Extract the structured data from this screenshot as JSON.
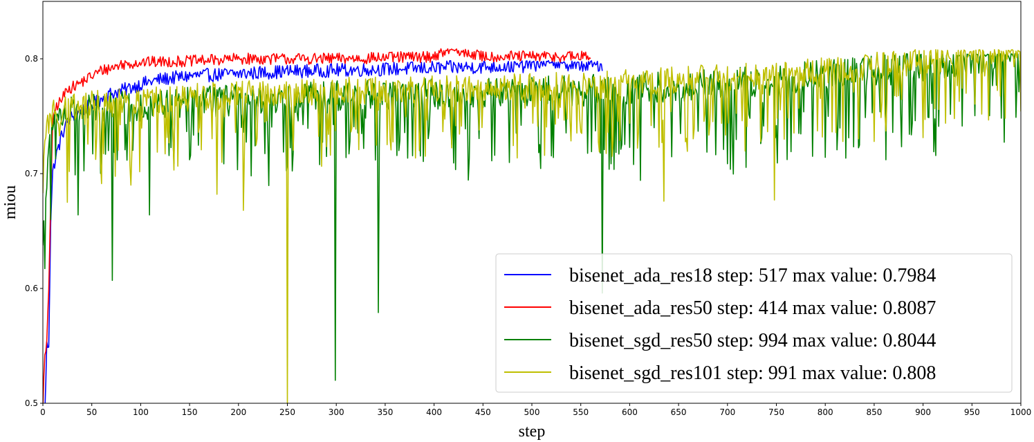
{
  "chart_data": {
    "type": "line",
    "title": "",
    "xlabel": "step",
    "ylabel": "miou",
    "xlim": [
      0,
      1000
    ],
    "ylim": [
      0.5,
      0.85
    ],
    "xticks": [
      0,
      50,
      100,
      150,
      200,
      250,
      300,
      350,
      400,
      450,
      500,
      550,
      600,
      650,
      700,
      750,
      800,
      850,
      900,
      950,
      1000
    ],
    "yticks": [
      0.5,
      0.6,
      0.7,
      0.8
    ],
    "grid": false,
    "legend_position": "lower-right",
    "series": [
      {
        "name": "bisenet_ada_res18 step: 517 max value: 0.7984",
        "color": "#0000ff",
        "x": [
          0,
          2,
          4,
          6,
          8,
          10,
          12,
          15,
          20,
          25,
          30,
          40,
          50,
          60,
          70,
          80,
          90,
          100,
          120,
          150,
          200,
          250,
          300,
          350,
          400,
          450,
          500,
          517,
          540,
          560,
          572
        ],
        "y": [
          0.45,
          0.49,
          0.55,
          0.552,
          0.66,
          0.7,
          0.71,
          0.72,
          0.735,
          0.745,
          0.75,
          0.755,
          0.76,
          0.765,
          0.77,
          0.772,
          0.775,
          0.778,
          0.782,
          0.785,
          0.787,
          0.789,
          0.79,
          0.791,
          0.792,
          0.793,
          0.794,
          0.7984,
          0.795,
          0.794,
          0.795
        ],
        "noise": 0.006,
        "max_step": 517,
        "max_value": 0.7984
      },
      {
        "name": "bisenet_ada_res50 step: 414 max value: 0.8087",
        "color": "#ff0000",
        "x": [
          0,
          2,
          4,
          6,
          8,
          10,
          12,
          15,
          20,
          25,
          30,
          40,
          50,
          60,
          70,
          80,
          100,
          150,
          200,
          250,
          300,
          350,
          400,
          414,
          450,
          500,
          550,
          560
        ],
        "y": [
          0.5,
          0.54,
          0.55,
          0.6,
          0.68,
          0.74,
          0.755,
          0.76,
          0.765,
          0.775,
          0.775,
          0.78,
          0.785,
          0.79,
          0.792,
          0.795,
          0.797,
          0.798,
          0.8,
          0.8,
          0.8,
          0.801,
          0.802,
          0.8087,
          0.802,
          0.802,
          0.802,
          0.801
        ],
        "noise": 0.005,
        "max_step": 414,
        "max_value": 0.8087
      },
      {
        "name": "bisenet_sgd_res50 step: 994 max value: 0.8044",
        "color": "#008000",
        "x": [
          0,
          3,
          10,
          30,
          100,
          200,
          300,
          400,
          500,
          550,
          600,
          650,
          700,
          750,
          800,
          850,
          900,
          950,
          994,
          1000
        ],
        "y": [
          0.635,
          0.68,
          0.745,
          0.75,
          0.755,
          0.76,
          0.763,
          0.765,
          0.767,
          0.768,
          0.77,
          0.772,
          0.775,
          0.778,
          0.782,
          0.785,
          0.79,
          0.795,
          0.8044,
          0.803
        ],
        "noise": 0.025,
        "dips": [
          [
            8,
            0.66
          ],
          [
            36,
            0.664
          ],
          [
            71,
            0.607
          ],
          [
            109,
            0.664
          ],
          [
            299,
            0.52
          ],
          [
            343,
            0.579
          ],
          [
            572,
            0.596
          ]
        ],
        "max_step": 994,
        "max_value": 0.8044
      },
      {
        "name": "bisenet_sgd_res101 step: 991 max value: 0.808",
        "color": "#bfbf00",
        "x": [
          0,
          3,
          10,
          30,
          100,
          200,
          300,
          400,
          500,
          550,
          600,
          650,
          700,
          750,
          800,
          850,
          900,
          950,
          991,
          1000
        ],
        "y": [
          0.69,
          0.73,
          0.75,
          0.755,
          0.76,
          0.765,
          0.768,
          0.77,
          0.772,
          0.773,
          0.775,
          0.778,
          0.78,
          0.782,
          0.786,
          0.79,
          0.795,
          0.8,
          0.808,
          0.804
        ],
        "noise": 0.022,
        "dips": [
          [
            25,
            0.675
          ],
          [
            90,
            0.69
          ],
          [
            178,
            0.682
          ],
          [
            205,
            0.668
          ],
          [
            250,
            0.5
          ],
          [
            635,
            0.676
          ],
          [
            748,
            0.677
          ],
          [
            818,
            0.728
          ],
          [
            850,
            0.728
          ]
        ],
        "max_step": 991,
        "max_value": 0.808
      }
    ]
  }
}
